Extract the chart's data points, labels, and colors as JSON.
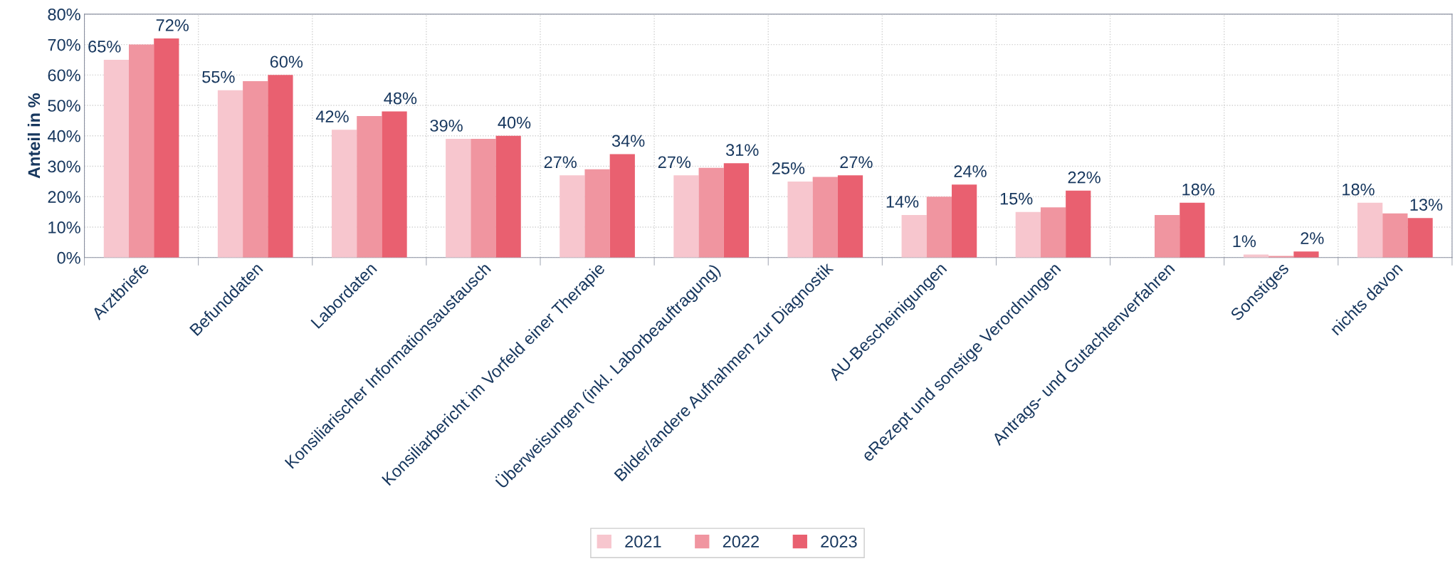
{
  "chart_data": {
    "type": "bar",
    "ylabel": "Anteil in %",
    "categories": [
      "Arztbriefe",
      "Befunddaten",
      "Labordaten",
      "Konsiliarischer Informationsaustausch",
      "Konsiliarbericht im Vorfeld einer Therapie",
      "Überweisungen (inkl. Laborbeauftragung)",
      "Bilder/andere Aufnahmen zur Diagnostik",
      "AU-Bescheinigungen",
      "eRezept und sonstige Verordnungen",
      "Antrags- und Gutachtenverfahren",
      "Sonstiges",
      "nichts davon"
    ],
    "series": [
      {
        "name": "2021",
        "color": "#f7c6ce",
        "values": [
          65,
          55,
          42,
          39,
          27,
          27,
          25,
          14,
          15,
          null,
          1,
          18
        ],
        "value_labels": [
          "65%",
          "55%",
          "42%",
          "39%",
          "27%",
          "27%",
          "25%",
          "14%",
          "15%",
          null,
          "1%",
          "18%"
        ]
      },
      {
        "name": "2022",
        "color": "#f095a0",
        "values": [
          70,
          58,
          46.5,
          39,
          29,
          29.5,
          26.5,
          20,
          16.5,
          14,
          0.5,
          14.5
        ]
      },
      {
        "name": "2023",
        "color": "#e96070",
        "values": [
          72,
          60,
          48,
          40,
          34,
          31,
          27,
          24,
          22,
          18,
          2,
          13
        ],
        "value_labels": [
          "72%",
          "60%",
          "48%",
          "40%",
          "34%",
          "31%",
          "27%",
          "24%",
          "22%",
          "18%",
          "2%",
          "13%"
        ]
      }
    ],
    "ylim": [
      0,
      80
    ],
    "yticks": [
      {
        "value": 0,
        "label": "0%"
      },
      {
        "value": 10,
        "label": "10%"
      },
      {
        "value": 20,
        "label": "20%"
      },
      {
        "value": 30,
        "label": "30%"
      },
      {
        "value": 40,
        "label": "40%"
      },
      {
        "value": 50,
        "label": "50%"
      },
      {
        "value": 60,
        "label": "60%"
      },
      {
        "value": 70,
        "label": "70%"
      },
      {
        "value": 80,
        "label": "80%"
      }
    ],
    "grid": true,
    "legend": "bottom"
  }
}
